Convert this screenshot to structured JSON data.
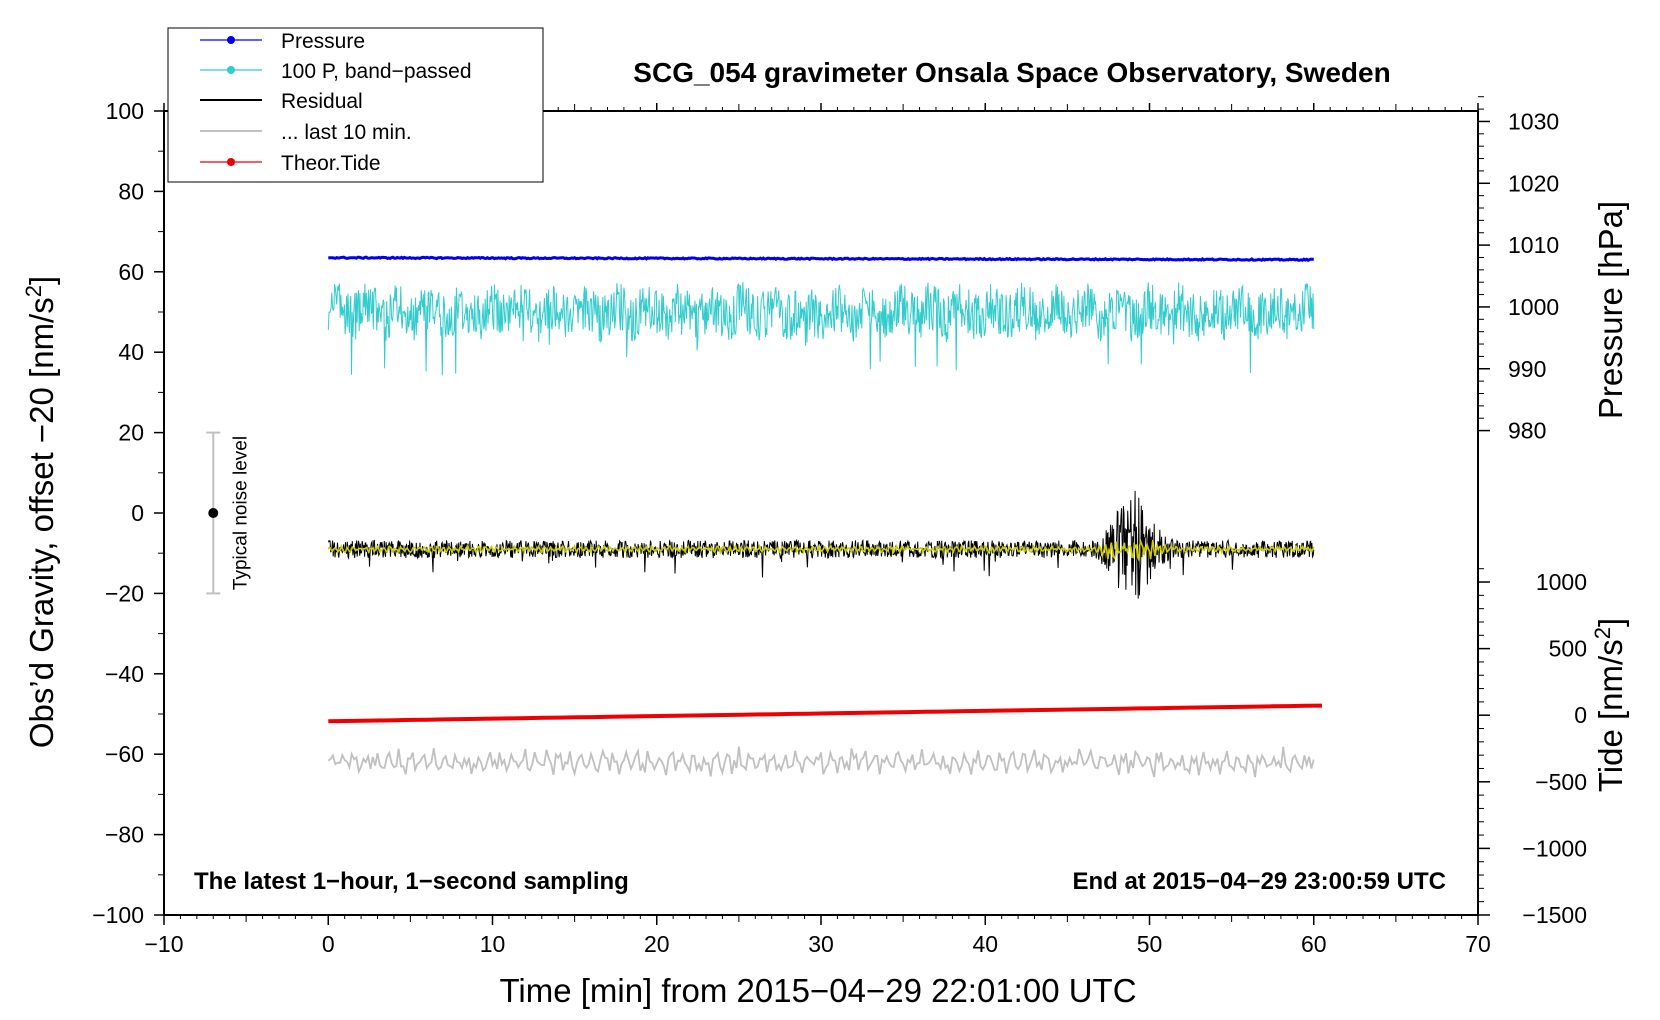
{
  "chart_data": {
    "type": "line",
    "title": "SCG_054 gravimeter Onsala Space Observatory, Sweden",
    "xlabel": "Time [min] from 2015−04−29 22:01:00 UTC",
    "ylabel": "Obs’d Gravity, offset −20 [nm/s²]",
    "ylabel_parts": [
      "Obs’d Gravity, offset −20 [nm/s",
      "2",
      "]"
    ],
    "right_pressure_label": "Pressure [hPa]",
    "right_tide_label_parts": [
      "Tide [nm/s",
      "2",
      "]"
    ],
    "xlim": [
      -10,
      70
    ],
    "ylim": [
      -100,
      100
    ],
    "x_ticks": [
      -10,
      0,
      10,
      20,
      30,
      40,
      50,
      60,
      70
    ],
    "x_tick_labels": [
      "−10",
      "0",
      "10",
      "20",
      "30",
      "40",
      "50",
      "60",
      "70"
    ],
    "y_ticks": [
      -100,
      -80,
      -60,
      -40,
      -20,
      0,
      20,
      40,
      60,
      80,
      100
    ],
    "y_tick_labels": [
      "−100",
      "−80",
      "−60",
      "−40",
      "−20",
      "0",
      "20",
      "40",
      "60",
      "80",
      "100"
    ],
    "pressure_axis": {
      "ticks": [
        980,
        990,
        1000,
        1010,
        1020,
        1030
      ],
      "tick_labels": [
        "980",
        "990",
        "1000",
        "1010",
        "1020",
        "1030"
      ],
      "gravity_at_980": 20.5,
      "gravity_per_hPa": 1.538
    },
    "tide_axis": {
      "ticks": [
        -1500,
        -1000,
        -500,
        0,
        500,
        1000
      ],
      "tick_labels": [
        "−1500",
        "−1000",
        "−500",
        "0",
        "500",
        "1000"
      ],
      "gravity_at_0": -50.3,
      "gravity_per_unit": 0.03313
    },
    "legend": {
      "position": "top-left",
      "entries": [
        {
          "label": "Pressure",
          "color": "#0000ee",
          "marker": true
        },
        {
          "label": "100 P, band−passed",
          "color": "#33cccc",
          "marker": true
        },
        {
          "label": "Residual",
          "color": "#000000",
          "marker": false
        },
        {
          "label": "... last 10 min.",
          "color": "#c0c0c0",
          "marker": false
        },
        {
          "label": "Theor.Tide",
          "color": "#ee0000",
          "marker": true
        }
      ]
    },
    "series": [
      {
        "name": "Pressure",
        "color": "#0000ee",
        "x_range": [
          0,
          60
        ],
        "y_start": 63.5,
        "y_end": 63.0,
        "noise": 0.3
      },
      {
        "name": "100 P, band−passed",
        "color": "#33cccc",
        "x_range": [
          0,
          60
        ],
        "y_mean": 50,
        "amplitude": 6,
        "min": 28.5,
        "max": 62.5
      },
      {
        "name": "Residual",
        "color": "#000000",
        "x_range": [
          0,
          60
        ],
        "y_mean": -9,
        "amplitude": 2.2,
        "event_x": [
          46.5,
          51.5
        ],
        "event_min": -27,
        "event_max": 5.5
      },
      {
        "name": "Residual smoothed",
        "color": "#cccc00",
        "x_range": [
          0,
          60
        ],
        "y_mean": -9,
        "amplitude": 0.7
      },
      {
        "name": "... last 10 min.",
        "color": "#c0c0c0",
        "x_range": [
          0,
          60
        ],
        "y_mean": -62,
        "amplitude": 3,
        "min": -68,
        "max": -55.5
      },
      {
        "name": "Theor.Tide",
        "color": "#ee0000",
        "x_range": [
          0,
          60.5
        ],
        "y_start": -51.8,
        "y_end": -47.9
      }
    ],
    "noise_bar": {
      "label": "Typical noise level",
      "x": -7,
      "y": 0,
      "low": -20,
      "high": 20,
      "color": "#c0c0c0"
    },
    "annotations": {
      "left": "The latest 1−hour, 1−second sampling",
      "right": "End at 2015−04−29 23:00:59 UTC"
    },
    "grid": false
  }
}
